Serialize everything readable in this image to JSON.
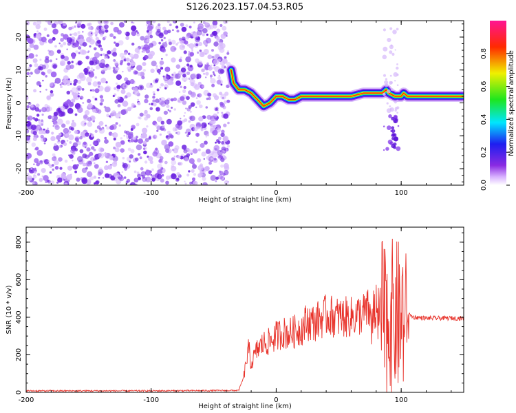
{
  "title": "S126.2023.157.04.53.R05",
  "chart_data": [
    {
      "type": "heatmap",
      "xlabel": "Height of straight line (km)",
      "ylabel": "Frequency (Hz)",
      "xlim": [
        -200,
        150
      ],
      "ylim": [
        -25,
        25
      ],
      "x_ticks": [
        -200,
        -100,
        0,
        100
      ],
      "y_ticks": [
        20,
        10,
        0,
        -10,
        -20
      ],
      "colorbar": {
        "label": "Normalized spectral amplitude",
        "range": [
          0,
          1
        ],
        "ticks": [
          0.0,
          0.2,
          0.4,
          0.6,
          0.8
        ],
        "colormap": "rainbow (white, purple, blue, cyan, green, yellow, red, magenta)"
      },
      "noise_region": {
        "x_range": [
          -200,
          -38
        ],
        "color": "#7a2be8"
      },
      "ridge": {
        "x": [
          -36,
          -34,
          -32,
          -30,
          -25,
          -20,
          -15,
          -10,
          -5,
          0,
          5,
          10,
          15,
          20,
          30,
          40,
          50,
          60,
          70,
          80,
          85,
          88,
          90,
          95,
          100,
          102,
          105,
          110,
          120,
          130,
          140,
          150
        ],
        "frequency_hz": [
          10,
          6,
          5,
          4,
          4,
          3,
          1,
          -1,
          0,
          2,
          2,
          1,
          1,
          2,
          2,
          2,
          2,
          2,
          3,
          3,
          3,
          4,
          3,
          2,
          2,
          3,
          2,
          2,
          2,
          2,
          2,
          2
        ]
      },
      "grid": false
    },
    {
      "type": "line",
      "xlabel": "Height of straight line (km)",
      "ylabel": "SNR (10 * v/v)",
      "xlim": [
        -200,
        150
      ],
      "ylim": [
        0,
        880
      ],
      "x_ticks": [
        -200,
        -100,
        0,
        100
      ],
      "y_ticks": [
        0,
        200,
        400,
        600,
        800
      ],
      "series": [
        {
          "color": "#e8322a",
          "x": [
            -200,
            -100,
            -30,
            -26,
            -24,
            -22,
            -20,
            -15,
            -10,
            -5,
            0,
            5,
            10,
            20,
            25,
            30,
            40,
            50,
            60,
            70,
            75,
            80,
            85,
            90,
            95,
            100,
            103,
            105,
            110,
            120,
            130,
            140,
            150
          ],
          "y": [
            8,
            8,
            10,
            80,
            160,
            230,
            150,
            230,
            260,
            270,
            300,
            320,
            310,
            340,
            380,
            370,
            410,
            400,
            400,
            420,
            440,
            450,
            560,
            620,
            640,
            680,
            500,
            420,
            400,
            395,
            395,
            395,
            395
          ]
        }
      ],
      "grid": false
    }
  ]
}
